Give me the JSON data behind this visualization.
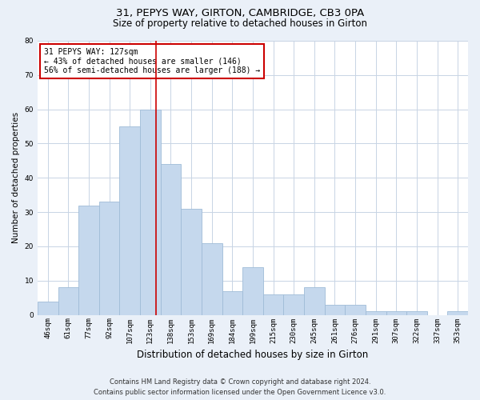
{
  "title1": "31, PEPYS WAY, GIRTON, CAMBRIDGE, CB3 0PA",
  "title2": "Size of property relative to detached houses in Girton",
  "xlabel": "Distribution of detached houses by size in Girton",
  "ylabel": "Number of detached properties",
  "categories": [
    "46sqm",
    "61sqm",
    "77sqm",
    "92sqm",
    "107sqm",
    "123sqm",
    "138sqm",
    "153sqm",
    "169sqm",
    "184sqm",
    "199sqm",
    "215sqm",
    "230sqm",
    "245sqm",
    "261sqm",
    "276sqm",
    "291sqm",
    "307sqm",
    "322sqm",
    "337sqm",
    "353sqm"
  ],
  "values": [
    4,
    8,
    32,
    33,
    55,
    60,
    44,
    31,
    21,
    7,
    14,
    6,
    6,
    8,
    3,
    3,
    1,
    1,
    1,
    0,
    1
  ],
  "bar_color": "#c5d8ed",
  "bar_edgecolor": "#a0bcd8",
  "vline_color": "#cc0000",
  "annotation_text": "31 PEPYS WAY: 127sqm\n← 43% of detached houses are smaller (146)\n56% of semi-detached houses are larger (188) →",
  "annotation_box_edgecolor": "#cc0000",
  "ylim": [
    0,
    80
  ],
  "yticks": [
    0,
    10,
    20,
    30,
    40,
    50,
    60,
    70,
    80
  ],
  "footer1": "Contains HM Land Registry data © Crown copyright and database right 2024.",
  "footer2": "Contains public sector information licensed under the Open Government Licence v3.0.",
  "bg_color": "#eaf0f8",
  "plot_bg_color": "#ffffff",
  "grid_color": "#c8d4e4",
  "title1_fontsize": 9.5,
  "title2_fontsize": 8.5,
  "xlabel_fontsize": 8.5,
  "ylabel_fontsize": 7.5,
  "tick_fontsize": 6.5,
  "footer_fontsize": 6.0,
  "ann_fontsize": 7.0
}
